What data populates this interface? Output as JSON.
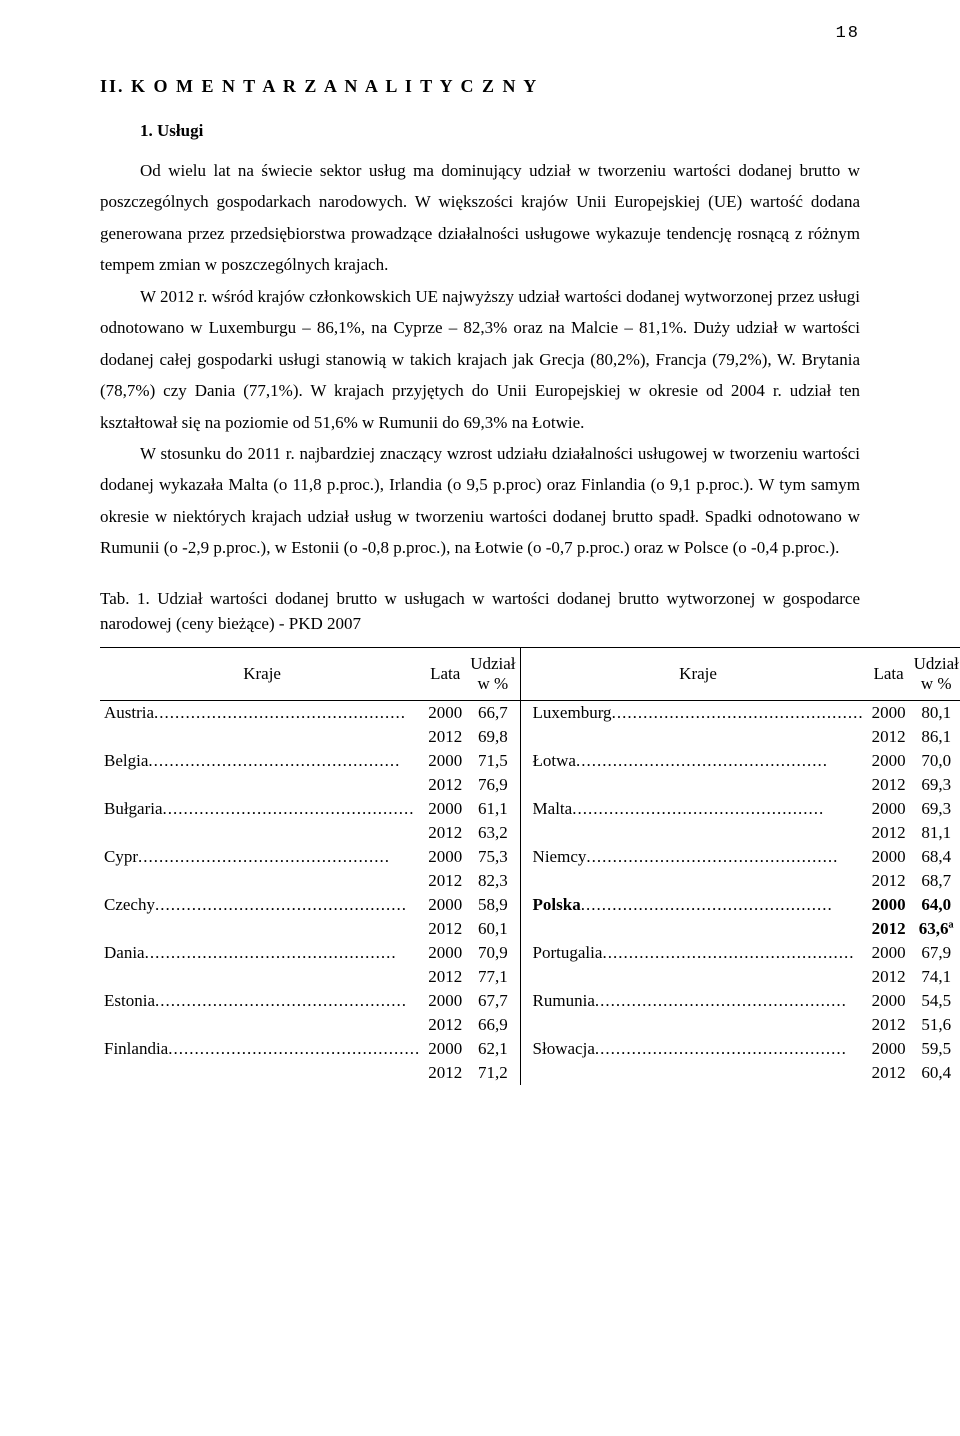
{
  "page_number": "18",
  "section_title": "II. K O M E N T A R Z   A N A L I T Y C Z N Y",
  "sub_title": "1. Usługi",
  "para1": "Od wielu lat na świecie sektor usług ma dominujący udział w tworzeniu wartości dodanej brutto w poszczególnych gospodarkach narodowych. W większości krajów Unii Europejskiej (UE) wartość dodana generowana przez przedsiębiorstwa prowadzące działalności usługowe wykazuje tendencję rosnącą z różnym tempem zmian w poszczególnych krajach.",
  "para2": "W 2012 r. wśród krajów członkowskich UE najwyższy udział wartości dodanej wytworzonej przez usługi odnotowano w Luxemburgu – 86,1%, na Cyprze – 82,3% oraz na Malcie – 81,1%. Duży udział w wartości dodanej całej gospodarki usługi stanowią w takich krajach jak Grecja (80,2%), Francja (79,2%), W. Brytania  (78,7%) czy Dania (77,1%). W krajach przyjętych do Unii Europejskiej w okresie od 2004 r. udział ten kształtował się na poziomie od 51,6% w Rumunii do 69,3%  na Łotwie.",
  "para3": "W stosunku do 2011 r. najbardziej znaczący wzrost udziału działalności usługowej w tworzeniu wartości dodanej wykazała Malta (o 11,8 p.proc.), Irlandia (o 9,5 p.proc) oraz Finlandia (o 9,1  p.proc.). W tym  samym  okresie  w  niektórych  krajach  udział  usług  w tworzeniu  wartości  dodanej  brutto  spadł. Spadki odnotowano w Rumunii (o -2,9 p.proc.), w Estonii (o -0,8 p.proc.), na Łotwie (o -0,7 p.proc.) oraz w Polsce  (o -0,4 p.proc.).",
  "tab_caption": "Tab. 1.  Udział  wartości  dodanej  brutto  w  usługach  w  wartości  dodanej  brutto  wytworzonej w gospodarce narodowej (ceny bieżące) - PKD 2007",
  "headers": {
    "kraje": "Kraje",
    "lata": "Lata",
    "udzial": "Udział",
    "w_pct": "w %"
  },
  "rows": [
    {
      "c1": "Austria",
      "y1a": "2000",
      "v1a": "66,7",
      "y1b": "2012",
      "v1b": "69,8",
      "c2": "Luxemburg",
      "y2a": "2000",
      "v2a": "80,1",
      "y2b": "2012",
      "v2b": "86,1",
      "bold": false
    },
    {
      "c1": "Belgia",
      "y1a": "2000",
      "v1a": "71,5",
      "y1b": "2012",
      "v1b": "76,9",
      "c2": "Łotwa",
      "y2a": "2000",
      "v2a": "70,0",
      "y2b": "2012",
      "v2b": "69,3",
      "bold": false
    },
    {
      "c1": "Bułgaria",
      "y1a": "2000",
      "v1a": "61,1",
      "y1b": "2012",
      "v1b": "63,2",
      "c2": "Malta",
      "y2a": "2000",
      "v2a": "69,3",
      "y2b": "2012",
      "v2b": "81,1",
      "bold": false
    },
    {
      "c1": "Cypr",
      "y1a": "2000",
      "v1a": "75,3",
      "y1b": "2012",
      "v1b": "82,3",
      "c2": "Niemcy",
      "y2a": "2000",
      "v2a": "68,4",
      "y2b": "2012",
      "v2b": "68,7",
      "bold": false
    },
    {
      "c1": "Czechy",
      "y1a": "2000",
      "v1a": "58,9",
      "y1b": "2012",
      "v1b": "60,1",
      "c2": "Polska",
      "y2a": "2000",
      "v2a": "64,0",
      "y2b": "2012",
      "v2b": "63,6ª",
      "bold": true
    },
    {
      "c1": "Dania",
      "y1a": "2000",
      "v1a": "70,9",
      "y1b": "2012",
      "v1b": "77,1",
      "c2": "Portugalia",
      "y2a": "2000",
      "v2a": "67,9",
      "y2b": "2012",
      "v2b": "74,1",
      "bold": false
    },
    {
      "c1": "Estonia",
      "y1a": "2000",
      "v1a": "67,7",
      "y1b": "2012",
      "v1b": "66,9",
      "c2": "Rumunia",
      "y2a": "2000",
      "v2a": "54,5",
      "y2b": "2012",
      "v2b": "51,6",
      "bold": false
    },
    {
      "c1": "Finlandia",
      "y1a": "2000",
      "v1a": "62,1",
      "y1b": "2012",
      "v1b": "71,2",
      "c2": "Słowacja",
      "y2a": "2000",
      "v2a": "59,5",
      "y2b": "2012",
      "v2b": "60,4",
      "bold": false
    }
  ],
  "dots": "................................................"
}
